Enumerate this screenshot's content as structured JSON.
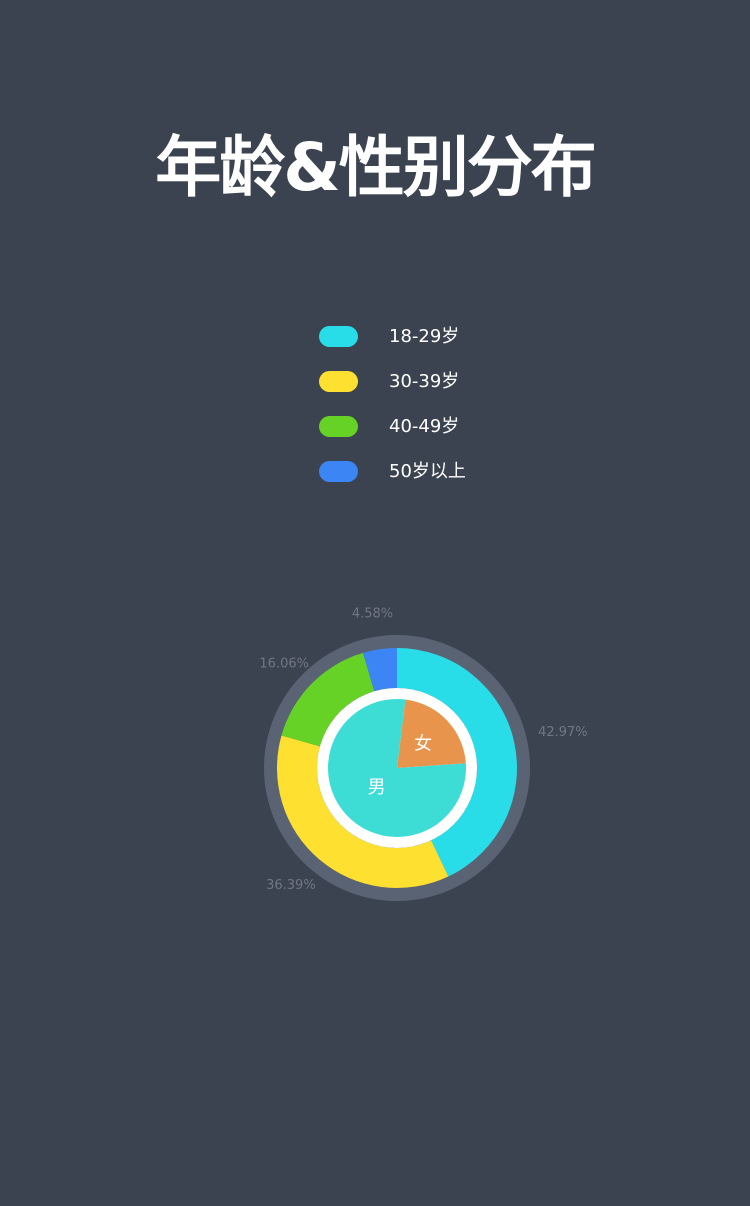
{
  "title": "年龄&性别分布",
  "legend": [
    {
      "label": "18-29岁",
      "color": "#29dde8"
    },
    {
      "label": "30-39岁",
      "color": "#fee030"
    },
    {
      "label": "40-49岁",
      "color": "#67d226"
    },
    {
      "label": "50岁以上",
      "color": "#3b85f5"
    }
  ],
  "chart_data": [
    {
      "type": "pie",
      "title": "",
      "style": "donut",
      "categories": [
        "18-29岁",
        "30-39岁",
        "40-49岁",
        "50岁以上"
      ],
      "values": [
        42.97,
        36.39,
        16.06,
        4.58
      ],
      "data_labels": [
        "42.97%",
        "36.39%",
        "16.06%",
        "4.58%"
      ],
      "colors": [
        "#29dde8",
        "#fee030",
        "#67d226",
        "#3b85f5"
      ]
    },
    {
      "type": "pie",
      "title": "",
      "categories": [
        "女",
        "男"
      ],
      "values": [
        22,
        78
      ],
      "colors": [
        "#e8944d",
        "#3dddd6"
      ]
    }
  ]
}
